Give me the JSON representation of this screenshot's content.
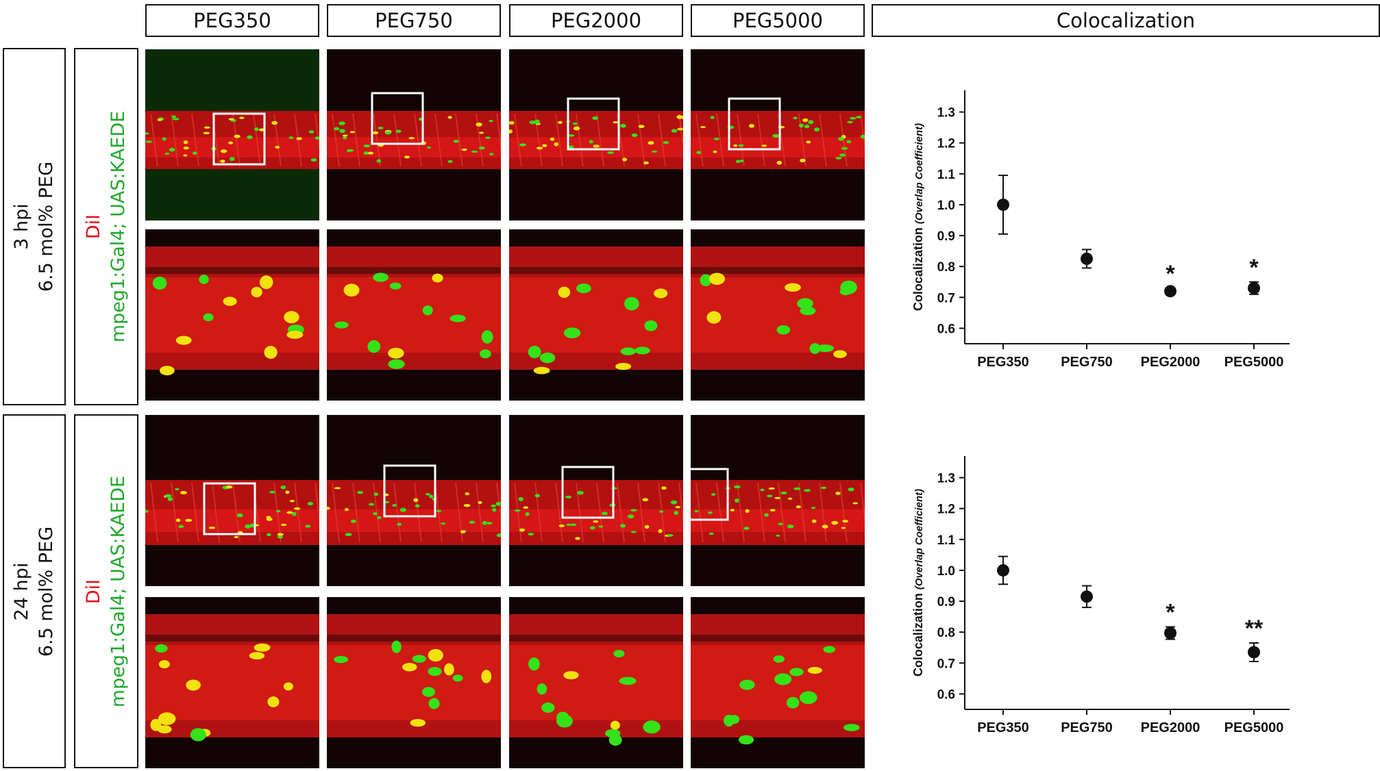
{
  "columns": [
    "PEG350",
    "PEG750",
    "PEG2000",
    "PEG5000"
  ],
  "colocalization_header": "Colocalization",
  "rows": [
    {
      "condition_line1": "3 hpi",
      "condition_line2": "6.5 mol% PEG",
      "stain_red": "DiI",
      "stain_green": "mpeg1:Gal4; UAS:KAEDE"
    },
    {
      "condition_line1": "24 hpi",
      "condition_line2": "6.5 mol% PEG",
      "stain_red": "DiI",
      "stain_green": "mpeg1:Gal4; UAS:KAEDE"
    }
  ],
  "colors": {
    "red_channel": "#d80d0d",
    "green_channel": "#34e21a",
    "yellow_overlap": "#f2e210"
  },
  "chart_data": [
    {
      "type": "scatter",
      "categories": [
        "PEG350",
        "PEG750",
        "PEG2000",
        "PEG5000"
      ],
      "values": [
        1.0,
        0.825,
        0.72,
        0.73
      ],
      "errors": [
        0.095,
        0.03,
        0.01,
        0.02
      ],
      "significance": [
        "",
        "",
        "*",
        "*"
      ],
      "ylabel": "Colocalization",
      "ylabel_italic": "(Overlap Coefficient)",
      "yticks": [
        "0.6",
        "0.7",
        "0.8",
        "0.9",
        "1.0",
        "1.1",
        "1.2",
        "1.3"
      ],
      "ylim": [
        0.55,
        1.37
      ]
    },
    {
      "type": "scatter",
      "categories": [
        "PEG350",
        "PEG750",
        "PEG2000",
        "PEG5000"
      ],
      "values": [
        1.0,
        0.915,
        0.797,
        0.735
      ],
      "errors": [
        0.045,
        0.035,
        0.02,
        0.03
      ],
      "significance": [
        "",
        "",
        "*",
        "**"
      ],
      "ylabel": "Colocalization",
      "ylabel_italic": "(Overlap Coefficient)",
      "yticks": [
        "0.6",
        "0.7",
        "0.8",
        "0.9",
        "1.0",
        "1.1",
        "1.2",
        "1.3"
      ],
      "ylim": [
        0.55,
        1.37
      ]
    }
  ]
}
